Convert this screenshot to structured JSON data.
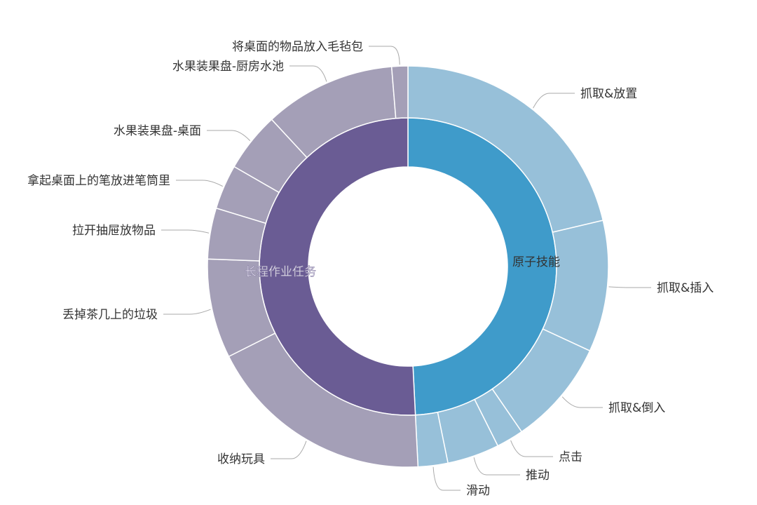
{
  "chart_data": {
    "type": "sunburst",
    "value_unit_note": "",
    "start": "top",
    "direction": "clockwise",
    "colors": {
      "原子技能": {
        "inner": "#3f9bca",
        "outer": "#97c0d9"
      },
      "长程作业任务": {
        "inner": "#6a5c94",
        "outer": "#a49fb7"
      },
      "separator": "#ffffff",
      "label": "#333333",
      "leader": "#aaaaaa"
    },
    "categories": [
      {
        "name": "原子技能",
        "children": [
          {
            "name": "抓取&放置",
            "value": 21.3
          },
          {
            "name": "抓取&插入",
            "value": 10.6
          },
          {
            "name": "抓取&倒入",
            "value": 8.5
          },
          {
            "name": "点击",
            "value": 2.2
          },
          {
            "name": "推动",
            "value": 4.2
          },
          {
            "name": "滑动",
            "value": 2.4
          }
        ]
      },
      {
        "name": "长程作业任务",
        "children": [
          {
            "name": "收纳玩具",
            "value": 18.4
          },
          {
            "name": "丢掉茶几上的垃圾",
            "value": 8.0
          },
          {
            "name": "拉开抽屉放物品",
            "value": 4.1
          },
          {
            "name": "拿起桌面上的笔放进笔筒里",
            "value": 3.6
          },
          {
            "name": "水果装果盘-桌面",
            "value": 4.8
          },
          {
            "name": "水果装果盘-厨房水池",
            "value": 10.6
          },
          {
            "name": "将桌面的物品放入毛毡包",
            "value": 1.3
          }
        ]
      }
    ]
  }
}
